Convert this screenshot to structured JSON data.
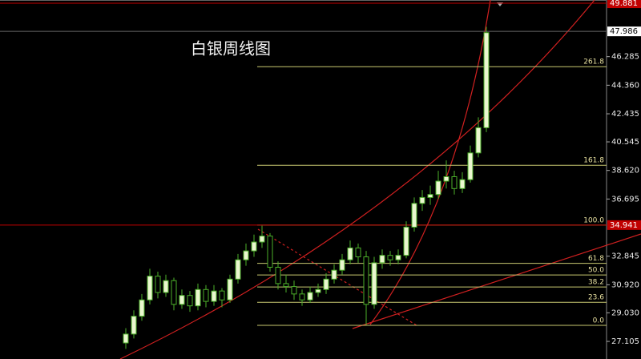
{
  "chart_data": {
    "type": "candlestick",
    "title": "白银周线图",
    "open": [
      27.0,
      27.6,
      28.8,
      29.9,
      31.5,
      30.4,
      31.2,
      29.6,
      30.2,
      29.5,
      30.6,
      29.8,
      30.5,
      29.9,
      31.3,
      32.6,
      33.2,
      33.8,
      34.2,
      32.1,
      31.0,
      30.8,
      30.3,
      29.9,
      30.4,
      30.6,
      31.3,
      31.9,
      32.6,
      33.4,
      32.8,
      29.6,
      32.4,
      32.9,
      32.6,
      32.9,
      34.8,
      36.4,
      36.8,
      37.0,
      37.9,
      38.2,
      37.4,
      38.0,
      39.8,
      41.5
    ],
    "high": [
      28.0,
      29.2,
      30.3,
      32.0,
      31.8,
      31.6,
      31.4,
      30.6,
      30.5,
      31.0,
      30.9,
      30.9,
      30.7,
      31.6,
      33.0,
      33.7,
      34.3,
      34.9,
      34.4,
      32.5,
      31.6,
      31.2,
      30.6,
      30.8,
      31.0,
      31.7,
      32.3,
      33.0,
      33.9,
      33.7,
      33.2,
      32.8,
      33.3,
      33.2,
      33.3,
      35.2,
      36.8,
      37.3,
      37.6,
      38.6,
      39.3,
      38.6,
      38.5,
      40.3,
      42.2,
      48.3
    ],
    "low": [
      26.6,
      27.3,
      28.5,
      29.6,
      30.0,
      30.1,
      29.2,
      29.3,
      29.1,
      29.2,
      29.4,
      29.5,
      29.4,
      29.7,
      31.0,
      32.2,
      32.8,
      33.4,
      31.8,
      30.6,
      30.4,
      29.9,
      29.5,
      29.7,
      30.1,
      30.3,
      31.0,
      31.6,
      32.3,
      32.4,
      28.2,
      29.3,
      32.0,
      32.2,
      32.3,
      32.7,
      34.5,
      35.9,
      36.3,
      36.7,
      37.4,
      37.0,
      37.1,
      37.8,
      39.5,
      41.2
    ],
    "close": [
      27.6,
      28.8,
      29.9,
      31.5,
      30.4,
      31.2,
      29.6,
      30.2,
      29.5,
      30.6,
      29.8,
      30.5,
      29.9,
      31.3,
      32.6,
      33.2,
      33.8,
      34.2,
      32.1,
      31.0,
      30.8,
      30.3,
      29.9,
      30.4,
      30.6,
      31.3,
      31.9,
      32.6,
      33.4,
      32.8,
      29.6,
      32.4,
      32.9,
      32.6,
      32.9,
      34.8,
      36.4,
      36.8,
      37.0,
      37.9,
      38.2,
      37.4,
      38.0,
      39.8,
      41.5,
      47.9
    ],
    "up_color": "#4caf2a",
    "down_color": "#4caf2a",
    "ylim": [
      25.92,
      50.1
    ],
    "yticks": [
      46.285,
      {
        "value": 44.36,
        "label": "44.360"
      },
      42.435,
      40.545,
      {
        "value": 38.62,
        "label": "38.620"
      },
      36.695,
      32.845,
      {
        "value": 30.92,
        "label": "30.920"
      },
      {
        "value": 29.03,
        "label": "29.030"
      },
      27.105
    ],
    "price_markers": [
      {
        "value": 49.881,
        "color": "#c00000"
      },
      {
        "value": 47.986,
        "color": "#ffffff"
      },
      {
        "value": 34.941,
        "color": "#c00000"
      }
    ],
    "fib_levels": [
      {
        "value": 45.61,
        "label": "261.8"
      },
      {
        "value": 38.97,
        "label": "161.8"
      },
      {
        "value": 34.94,
        "label": "100.0"
      },
      {
        "value": 32.36,
        "label": "61.8"
      },
      {
        "value": 31.58,
        "label": "50.0"
      },
      {
        "value": 30.77,
        "label": "38.2"
      },
      {
        "value": 29.74,
        "label": "23.6"
      },
      {
        "value": 28.19,
        "label": "0.0"
      }
    ],
    "fib_color": "#c8c870"
  }
}
